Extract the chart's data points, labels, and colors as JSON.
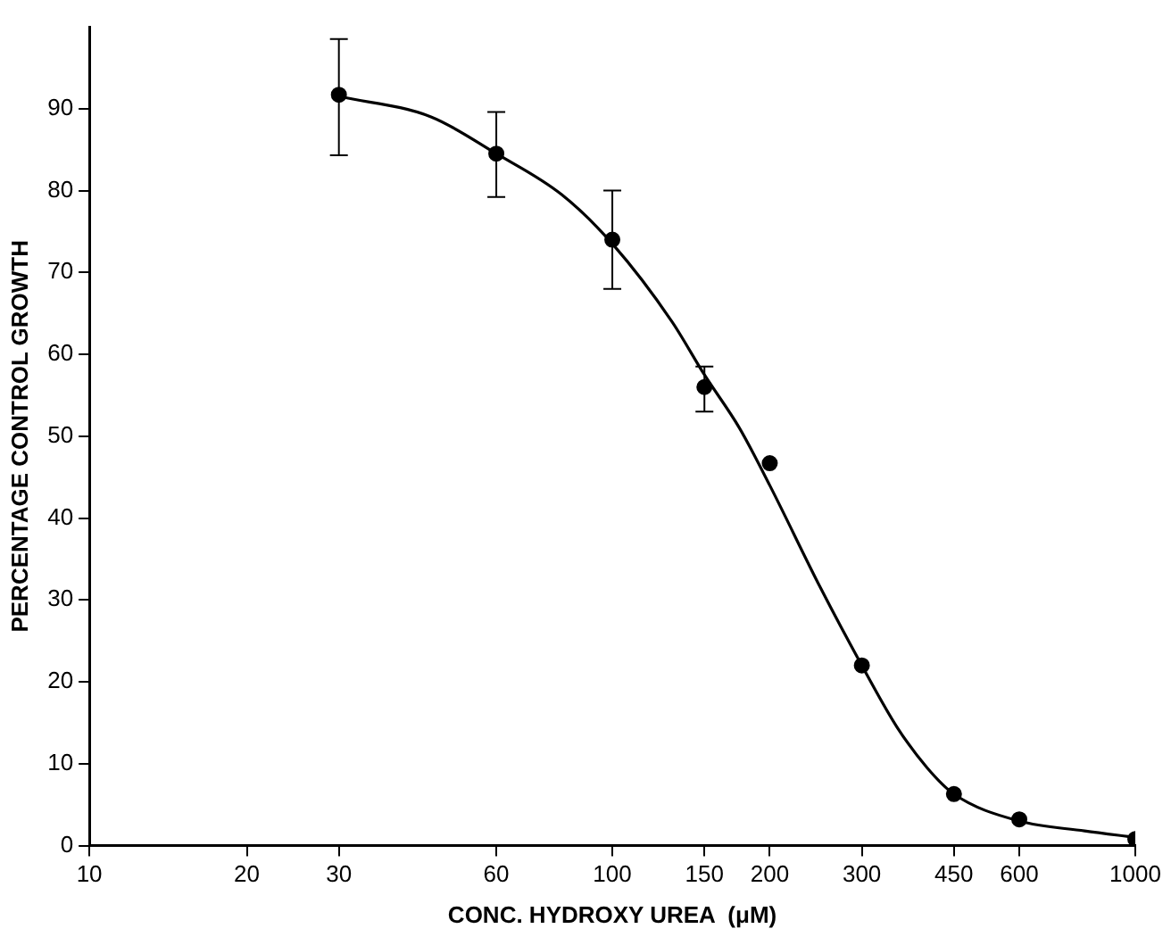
{
  "chart_data": {
    "type": "scatter",
    "xlabel": "CONC. HYDROXY UREA  (μM)",
    "ylabel": "PERCENTAGE CONTROL GROWTH",
    "log": "x",
    "xlim": [
      10,
      1000
    ],
    "xticks": [
      10,
      20,
      30,
      60,
      100,
      150,
      200,
      300,
      450,
      600,
      1000
    ],
    "ylim": [
      0,
      100
    ],
    "yticks": [
      0,
      10,
      20,
      30,
      40,
      50,
      60,
      70,
      80,
      90
    ],
    "grid": false,
    "legend": false,
    "marker": "circle",
    "series": [
      {
        "color": "#000000",
        "x": [
          30,
          60,
          100,
          150,
          200,
          300,
          450,
          600,
          1000
        ],
        "values": [
          91.7,
          84.5,
          74,
          56,
          46.7,
          22,
          6.3,
          3.2,
          0.8
        ],
        "errors": [
          [
            84.3,
            98.5
          ],
          [
            79.2,
            89.6
          ],
          [
            68,
            80
          ],
          [
            53,
            58.5
          ],
          null,
          null,
          null,
          null,
          null
        ]
      },
      {
        "type": "line",
        "color": "#000000",
        "marker": "none",
        "x": [
          30,
          45,
          60,
          80,
          100,
          130,
          150,
          175,
          200,
          250,
          300,
          350,
          400,
          450,
          600,
          800,
          1000
        ],
        "values": [
          91.5,
          89,
          84.5,
          79.5,
          73.5,
          64,
          57.5,
          51,
          44,
          31.5,
          22,
          14.5,
          9.5,
          6.3,
          3,
          1.8,
          1
        ]
      }
    ]
  }
}
